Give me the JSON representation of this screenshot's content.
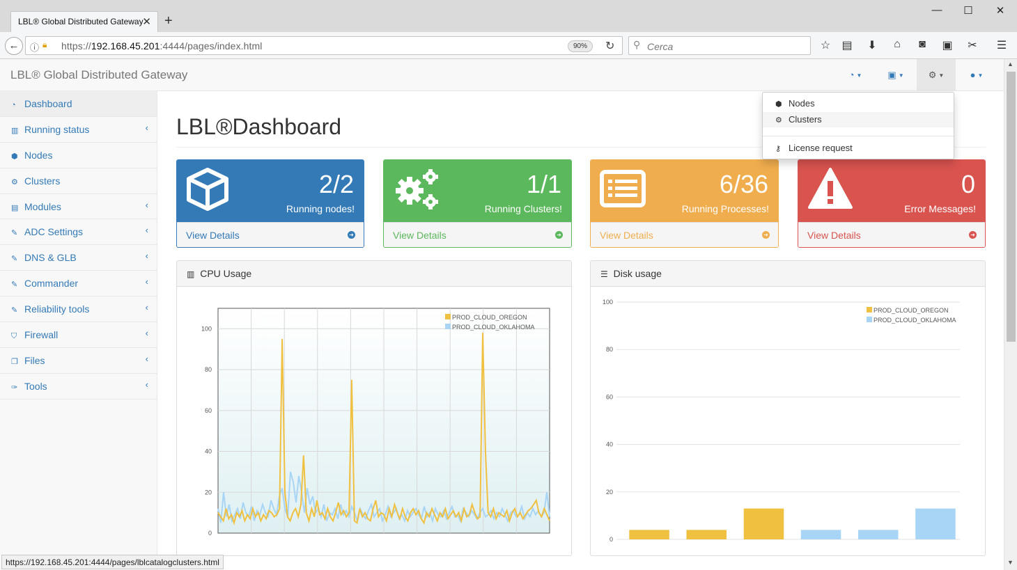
{
  "browser": {
    "tab_title": "LBL® Global Distributed Gateway",
    "url_prefix": "https://",
    "url_host": "192.168.45.201",
    "url_rest": ":4444/pages/index.html",
    "zoom": "90%",
    "search_placeholder": "Cerca",
    "status_url": "https://192.168.45.201:4444/pages/lblcatalogclusters.html"
  },
  "app": {
    "brand": "LBL® Global Distributed Gateway"
  },
  "sidebar": {
    "items": [
      {
        "label": "Dashboard",
        "icon": "dashboard-icon",
        "glyph": "◔",
        "arrow": false
      },
      {
        "label": "Running status",
        "icon": "bar-chart-icon",
        "glyph": "▥",
        "arrow": true
      },
      {
        "label": "Nodes",
        "icon": "cube-icon",
        "glyph": "⬢",
        "arrow": false
      },
      {
        "label": "Clusters",
        "icon": "cogs-icon",
        "glyph": "⚙",
        "arrow": false
      },
      {
        "label": "Modules",
        "icon": "list-icon",
        "glyph": "▤",
        "arrow": true
      },
      {
        "label": "ADC Settings",
        "icon": "edit-icon",
        "glyph": "✎",
        "arrow": true
      },
      {
        "label": "DNS & GLB",
        "icon": "edit-icon",
        "glyph": "✎",
        "arrow": true
      },
      {
        "label": "Commander",
        "icon": "edit-icon",
        "glyph": "✎",
        "arrow": true
      },
      {
        "label": "Reliability tools",
        "icon": "edit-icon",
        "glyph": "✎",
        "arrow": true
      },
      {
        "label": "Firewall",
        "icon": "shield-icon",
        "glyph": "⛉",
        "arrow": true
      },
      {
        "label": "Files",
        "icon": "files-icon",
        "glyph": "❐",
        "arrow": true
      },
      {
        "label": "Tools",
        "icon": "wrench-icon",
        "glyph": "✑",
        "arrow": true
      }
    ]
  },
  "main": {
    "title": "LBL®Dashboard",
    "panels": [
      {
        "count": "2/2",
        "label": "Running nodes!",
        "link": "View Details",
        "color": "#337ab7",
        "icon": "cube-icon"
      },
      {
        "count": "1/1",
        "label": "Running Clusters!",
        "link": "View Details",
        "color": "#5cb85c",
        "icon": "cogs-icon"
      },
      {
        "count": "6/36",
        "label": "Running Processes!",
        "link": "View Details",
        "color": "#f0ad4e",
        "icon": "list-alt-icon"
      },
      {
        "count": "0",
        "label": "Error Messages!",
        "link": "View Details",
        "color": "#d9534f",
        "icon": "warning-icon"
      }
    ]
  },
  "dropdown": {
    "items": [
      {
        "label": "Nodes",
        "icon": "cubes-icon",
        "glyph": "⬢"
      },
      {
        "label": "Clusters",
        "icon": "cogs-icon",
        "glyph": "⚙"
      },
      {
        "label": "License request",
        "icon": "key-icon",
        "glyph": "⚷"
      }
    ]
  },
  "chart_data": [
    {
      "type": "line",
      "title": "CPU Usage",
      "ylim": [
        0,
        110
      ],
      "yticks": [
        0,
        20,
        40,
        60,
        80,
        100
      ],
      "series": [
        {
          "name": "PROD_CLOUD_OREGON",
          "color": "#f0c040",
          "values": [
            10,
            8,
            6,
            12,
            7,
            9,
            5,
            10,
            8,
            11,
            6,
            9,
            7,
            12,
            8,
            10,
            6,
            9,
            7,
            11,
            10,
            8,
            9,
            12,
            95,
            20,
            8,
            6,
            10,
            12,
            8,
            14,
            38,
            10,
            6,
            12,
            8,
            16,
            9,
            10,
            7,
            12,
            8,
            6,
            10,
            15,
            9,
            11,
            8,
            10,
            75,
            6,
            5,
            12,
            8,
            10,
            7,
            6,
            12,
            16,
            8,
            10,
            9,
            6,
            12,
            8,
            14,
            10,
            7,
            12,
            8,
            6,
            10,
            12,
            9,
            11,
            7,
            5,
            10,
            8,
            12,
            9,
            6,
            10,
            8,
            12,
            7,
            9,
            11,
            8,
            10,
            6,
            12,
            8,
            9,
            14,
            10,
            7,
            8,
            98,
            40,
            10,
            8,
            12,
            7,
            10,
            9,
            8,
            11,
            6,
            10,
            12,
            8,
            10,
            7,
            9,
            11,
            12,
            14,
            16,
            10,
            8,
            12,
            9,
            6
          ]
        },
        {
          "name": "PROD_CLOUD_OKLAHOMA",
          "color": "#a8d4f5",
          "values": [
            12,
            5,
            20,
            8,
            14,
            6,
            9,
            12,
            7,
            15,
            10,
            8,
            13,
            6,
            11,
            9,
            14,
            10,
            8,
            16,
            12,
            9,
            18,
            22,
            12,
            8,
            30,
            25,
            15,
            28,
            20,
            10,
            22,
            14,
            18,
            10,
            12,
            8,
            14,
            6,
            10,
            9,
            12,
            7,
            14,
            9,
            11,
            8,
            13,
            10,
            6,
            12,
            9,
            7,
            11,
            14,
            8,
            10,
            12,
            6,
            9,
            13,
            8,
            10,
            12,
            7,
            9,
            6,
            11,
            8,
            10,
            12,
            9,
            7,
            13,
            8,
            10,
            6,
            12,
            9,
            8,
            11,
            7,
            10,
            13,
            8,
            9,
            6,
            12,
            10,
            8,
            11,
            9,
            7,
            10,
            12,
            8,
            9,
            11,
            7,
            10,
            8,
            12,
            9,
            6,
            10,
            11,
            8,
            9,
            13,
            7,
            10,
            8,
            12,
            9,
            11,
            8,
            10,
            20,
            8
          ]
        }
      ]
    },
    {
      "type": "bar",
      "title": "Disk usage",
      "ylim": [
        0,
        100
      ],
      "yticks": [
        0,
        20,
        40,
        60,
        80,
        100
      ],
      "series": [
        {
          "name": "PROD_CLOUD_OREGON",
          "color": "#f0c040",
          "values": [
            4,
            4,
            13
          ]
        },
        {
          "name": "PROD_CLOUD_OKLAHOMA",
          "color": "#a8d4f5",
          "values": [
            4,
            4,
            13
          ]
        }
      ]
    }
  ]
}
